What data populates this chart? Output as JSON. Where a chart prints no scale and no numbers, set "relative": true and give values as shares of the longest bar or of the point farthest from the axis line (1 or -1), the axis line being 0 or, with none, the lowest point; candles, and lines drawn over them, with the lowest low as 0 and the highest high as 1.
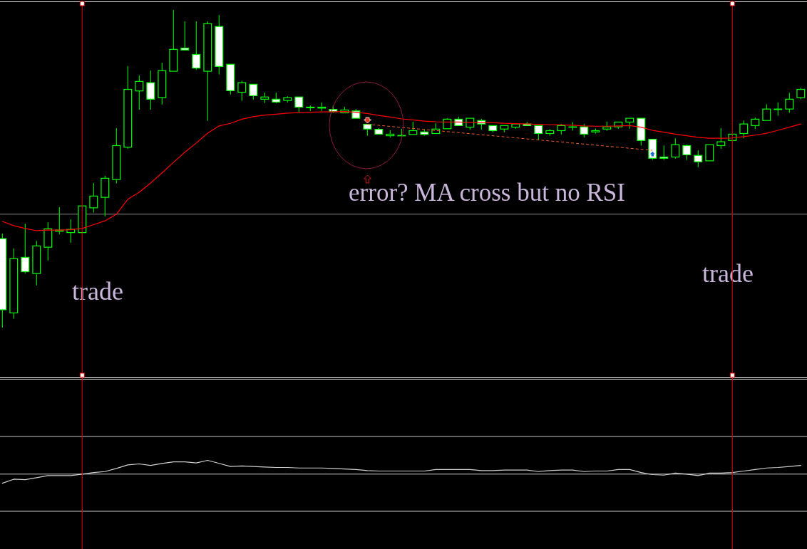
{
  "chart_data": [
    {
      "type": "candlestick",
      "relative": true,
      "color": "#00ff00",
      "categories": [
        null,
        null,
        null,
        null,
        null,
        null,
        null,
        null,
        null,
        null,
        null,
        null,
        null,
        null,
        null,
        null,
        null,
        null,
        null,
        null,
        null,
        null,
        null,
        null,
        null,
        null,
        null,
        null,
        null,
        null,
        null,
        null,
        null,
        null,
        null,
        null,
        null,
        null,
        null,
        null,
        null,
        null,
        null,
        null,
        null,
        null,
        null,
        null,
        null,
        null,
        null,
        null,
        null,
        null,
        null,
        null,
        null,
        null,
        null,
        null,
        null,
        null,
        null,
        null,
        null,
        null,
        null,
        null,
        null,
        null,
        null
      ],
      "ohlc": [
        [
          0.28,
          0.296,
          0,
          0.056
        ],
        [
          0.046,
          0.249,
          0.028,
          0.217
        ],
        [
          0.221,
          0.327,
          0.17,
          0.176
        ],
        [
          0.17,
          0.273,
          0.133,
          0.257
        ],
        [
          0.253,
          0.331,
          0.211,
          0.311
        ],
        [
          0.303,
          0.379,
          0.294,
          0.307
        ],
        [
          0.299,
          0.341,
          0.267,
          0.309
        ],
        [
          0.299,
          0.383,
          0.296,
          0.383
        ],
        [
          0.377,
          0.455,
          0.362,
          0.414
        ],
        [
          0.41,
          0.478,
          0.35,
          0.47
        ],
        [
          0.466,
          0.628,
          0.454,
          0.573
        ],
        [
          0.568,
          0.823,
          0.563,
          0.75
        ],
        [
          0.745,
          0.794,
          0.686,
          0.775
        ],
        [
          0.771,
          0.809,
          0.686,
          0.719
        ],
        [
          0.724,
          0.834,
          0.702,
          0.809
        ],
        [
          0.807,
          1,
          0.807,
          0.876
        ],
        [
          0.88,
          0.964,
          0.874,
          0.874
        ],
        [
          0.86,
          0.964,
          0.812,
          0.817
        ],
        [
          0.807,
          0.964,
          0.651,
          0.957
        ],
        [
          0.948,
          0.984,
          0.797,
          0.822
        ],
        [
          0.829,
          0.829,
          0.734,
          0.746
        ],
        [
          0.741,
          0.777,
          0.714,
          0.771
        ],
        [
          0.766,
          0.766,
          0.718,
          0.73
        ],
        [
          0.719,
          0.74,
          0.707,
          0.726
        ],
        [
          0.719,
          0.74,
          0.707,
          0.71
        ],
        [
          0.715,
          0.728,
          0.709,
          0.724
        ],
        [
          0.726,
          0.726,
          0.678,
          0.694
        ],
        [
          0.692,
          0.699,
          0.682,
          0.694
        ],
        [
          0.691,
          0.709,
          0.682,
          0.694
        ],
        [
          0.687,
          0.7,
          0.676,
          0.68
        ],
        [
          0.676,
          0.695,
          0.676,
          0.685
        ],
        [
          0.682,
          0.688,
          0.659,
          0.659
        ],
        [
          0.64,
          0.64,
          0.604,
          0.625
        ],
        [
          0.624,
          0.628,
          0.609,
          0.609
        ],
        [
          0.604,
          0.621,
          0.599,
          0.609
        ],
        [
          0.605,
          0.626,
          0.604,
          0.605
        ],
        [
          0.608,
          0.648,
          0.608,
          0.62
        ],
        [
          0.616,
          0.624,
          0.604,
          0.608
        ],
        [
          0.611,
          0.643,
          0.611,
          0.625
        ],
        [
          0.626,
          0.659,
          0.626,
          0.656
        ],
        [
          0.656,
          0.664,
          0.636,
          0.636
        ],
        [
          0.631,
          0.659,
          0.623,
          0.659
        ],
        [
          0.652,
          0.657,
          0.623,
          0.641
        ],
        [
          0.636,
          0.636,
          0.615,
          0.62
        ],
        [
          0.625,
          0.636,
          0.615,
          0.636
        ],
        [
          0.631,
          0.641,
          0.626,
          0.641
        ],
        [
          0.641,
          0.647,
          0.636,
          0.636
        ],
        [
          0.636,
          0.636,
          0.591,
          0.611
        ],
        [
          0.611,
          0.625,
          0.604,
          0.62
        ],
        [
          0.62,
          0.641,
          0.608,
          0.636
        ],
        [
          0.632,
          0.647,
          0.62,
          0.632
        ],
        [
          0.632,
          0.641,
          0.599,
          0.609
        ],
        [
          0.616,
          0.627,
          0.611,
          0.62
        ],
        [
          0.625,
          0.648,
          0.62,
          0.632
        ],
        [
          0.632,
          0.647,
          0.626,
          0.647
        ],
        [
          0.647,
          0.659,
          0.626,
          0.659
        ],
        [
          0.659,
          0.659,
          0.573,
          0.589
        ],
        [
          0.593,
          0.593,
          0.528,
          0.533
        ],
        [
          0.537,
          0.573,
          0.528,
          0.533
        ],
        [
          0.537,
          0.596,
          0.532,
          0.576
        ],
        [
          0.573,
          0.576,
          0.528,
          0.544
        ],
        [
          0.542,
          0.558,
          0.505,
          0.522
        ],
        [
          0.525,
          0.576,
          0.525,
          0.576
        ],
        [
          0.573,
          0.628,
          0.563,
          0.585
        ],
        [
          0.589,
          0.609,
          0.589,
          0.609
        ],
        [
          0.611,
          0.652,
          0.596,
          0.641
        ],
        [
          0.636,
          0.661,
          0.625,
          0.656
        ],
        [
          0.652,
          0.703,
          0.652,
          0.688
        ],
        [
          0.688,
          0.709,
          0.667,
          0.688
        ],
        [
          0.688,
          0.739,
          0.676,
          0.719
        ],
        [
          0.724,
          0.755,
          0.719,
          0.75
        ]
      ],
      "series": [
        {
          "type": "line",
          "color": "#ff0000",
          "values": [
            0.334,
            0.321,
            0.312,
            0.305,
            0.307,
            0.307,
            0.308,
            0.312,
            0.324,
            0.336,
            0.357,
            0.404,
            0.426,
            0.455,
            0.487,
            0.52,
            0.552,
            0.581,
            0.612,
            0.635,
            0.643,
            0.656,
            0.664,
            0.669,
            0.672,
            0.675,
            0.677,
            0.678,
            0.679,
            0.679,
            0.68,
            0.678,
            0.674,
            0.668,
            0.663,
            0.657,
            0.654,
            0.65,
            0.648,
            0.647,
            0.647,
            0.646,
            0.646,
            0.645,
            0.643,
            0.642,
            0.641,
            0.64,
            0.639,
            0.638,
            0.637,
            0.635,
            0.634,
            0.634,
            0.635,
            0.636,
            0.631,
            0.621,
            0.615,
            0.609,
            0.604,
            0.599,
            0.596,
            0.596,
            0.597,
            0.601,
            0.606,
            0.612,
            0.621,
            0.631,
            0.641
          ]
        },
        {
          "type": "line",
          "color": "#f05a28",
          "line_style": "dashed",
          "values": [
            null,
            null,
            null,
            null,
            null,
            null,
            null,
            null,
            null,
            null,
            null,
            null,
            null,
            null,
            null,
            null,
            null,
            null,
            null,
            null,
            null,
            null,
            null,
            null,
            null,
            null,
            null,
            null,
            null,
            null,
            null,
            null,
            0.64,
            null,
            null,
            null,
            null,
            null,
            null,
            null,
            null,
            null,
            null,
            null,
            null,
            null,
            null,
            null,
            null,
            null,
            null,
            null,
            null,
            null,
            null,
            null,
            null,
            0.558,
            null,
            null,
            null,
            null,
            null,
            null,
            null,
            null,
            null,
            null,
            null,
            null,
            null
          ]
        }
      ],
      "ref_lines": [
        {
          "axis": "y",
          "value": 0.357,
          "color": "#8c8c8c"
        }
      ],
      "annotations": [
        "trade",
        "error? MA cross but no RSI",
        "trade"
      ]
    },
    {
      "type": "line",
      "relative": true,
      "color": "#d0d0d0",
      "categories": [
        null,
        null,
        null,
        null,
        null,
        null,
        null,
        null,
        null,
        null,
        null,
        null,
        null,
        null,
        null,
        null,
        null,
        null,
        null,
        null,
        null,
        null,
        null,
        null,
        null,
        null,
        null,
        null,
        null,
        null,
        null,
        null,
        null,
        null,
        null,
        null,
        null,
        null,
        null,
        null,
        null,
        null,
        null,
        null,
        null,
        null,
        null,
        null,
        null,
        null,
        null,
        null,
        null,
        null,
        null,
        null,
        null,
        null,
        null,
        null,
        null,
        null,
        null,
        null,
        null,
        null,
        null,
        null,
        null,
        null,
        null
      ],
      "values": [
        0.55,
        0.63,
        0.62,
        0.66,
        0.7,
        0.7,
        0.7,
        0.73,
        0.76,
        0.78,
        0.84,
        0.91,
        0.93,
        0.9,
        0.94,
        0.97,
        0.97,
        0.95,
        1.0,
        0.94,
        0.88,
        0.89,
        0.88,
        0.87,
        0.86,
        0.86,
        0.85,
        0.85,
        0.85,
        0.84,
        0.83,
        0.82,
        0.8,
        0.79,
        0.79,
        0.79,
        0.79,
        0.79,
        0.82,
        0.82,
        0.82,
        0.82,
        0.8,
        0.8,
        0.81,
        0.81,
        0.81,
        0.78,
        0.8,
        0.81,
        0.81,
        0.78,
        0.79,
        0.79,
        0.82,
        0.82,
        0.76,
        0.72,
        0.71,
        0.75,
        0.73,
        0.7,
        0.75,
        0.75,
        0.76,
        0.79,
        0.82,
        0.85,
        0.86,
        0.88,
        0.9
      ],
      "ref_lines": [
        {
          "axis": "y",
          "value": 1.47,
          "color": "#c8c8c8"
        },
        {
          "axis": "y",
          "value": 0.73,
          "color": "#c8c8c8"
        },
        {
          "axis": "y",
          "value": 0,
          "color": "#c8c8c8"
        }
      ]
    }
  ]
}
